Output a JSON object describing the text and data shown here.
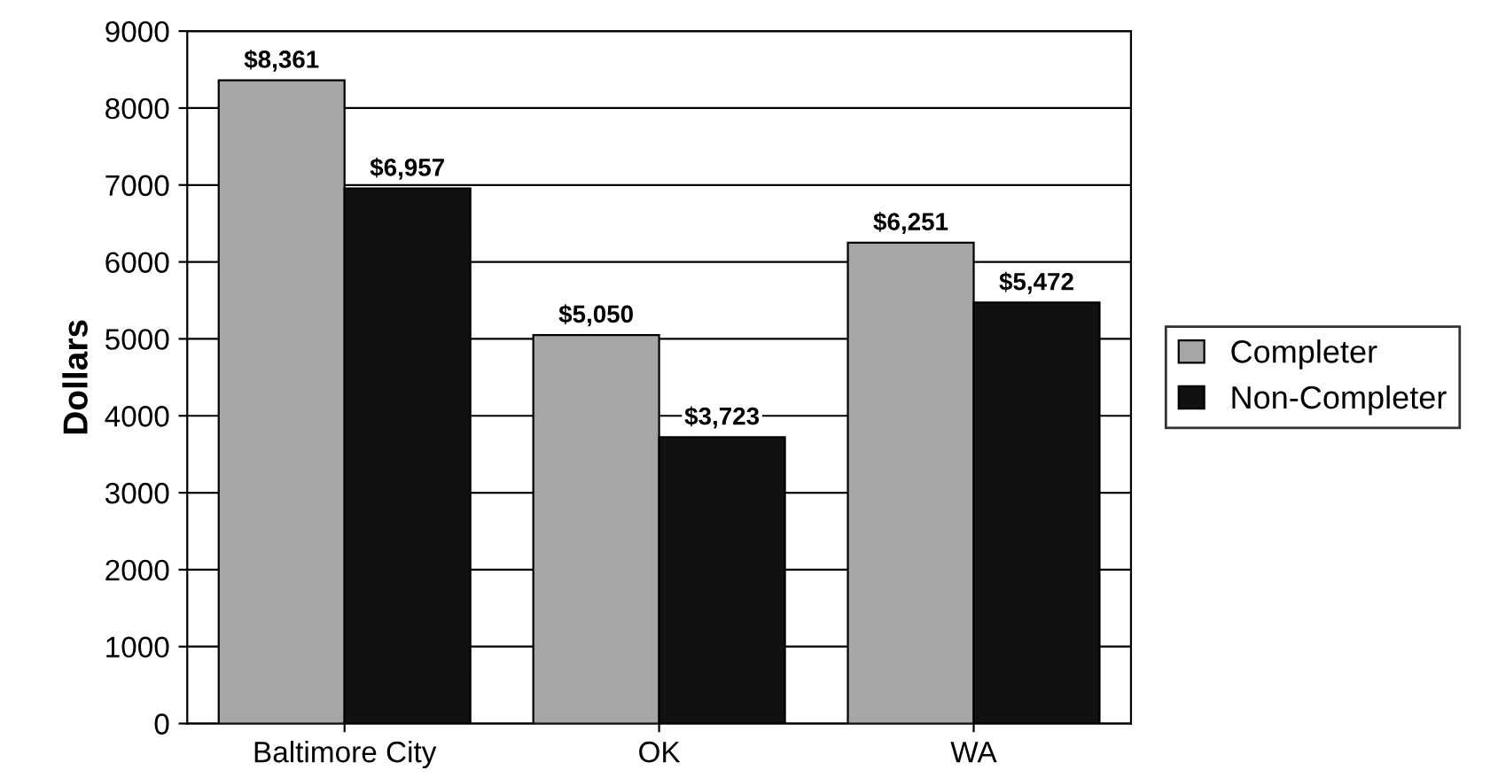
{
  "chart_data": {
    "type": "bar",
    "ylabel": "Dollars",
    "categories": [
      "Baltimore City",
      "OK",
      "WA"
    ],
    "series": [
      {
        "name": "Completer",
        "color": "#a6a6a6",
        "values": [
          8361,
          5050,
          6251
        ],
        "value_labels": [
          "$8,361",
          "$5,050",
          "$6,251"
        ]
      },
      {
        "name": "Non-Completer",
        "color": "#111111",
        "values": [
          6957,
          3723,
          5472
        ],
        "value_labels": [
          "$6,957",
          "$3,723",
          "$5,472"
        ]
      }
    ],
    "ylim": [
      0,
      9000
    ],
    "yticks": [
      0,
      1000,
      2000,
      3000,
      4000,
      5000,
      6000,
      7000,
      8000,
      9000
    ],
    "grid": "y",
    "legend": "right"
  }
}
